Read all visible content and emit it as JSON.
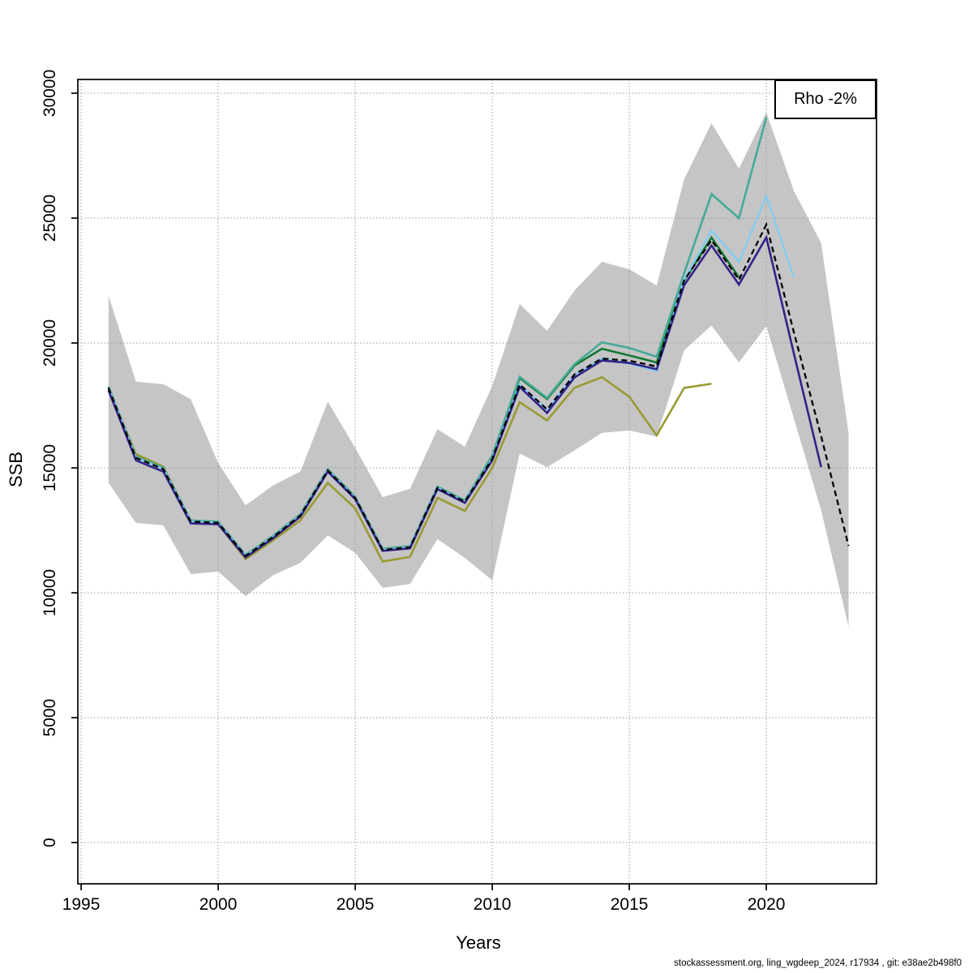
{
  "page": {
    "background": "#ffffff"
  },
  "legend": {
    "label": "Rho -2%"
  },
  "footer": {
    "text": "stockassessment.org, ling_wgdeep_2024, r17934 , git: e38ae2b498f0"
  },
  "chart_data": {
    "type": "line",
    "title": "",
    "xlabel": "Years",
    "ylabel": "SSB",
    "legend_position": "top-right",
    "grid": "dotted gridlines at every axis tick, drawn above confidence band",
    "x_ticks": [
      1995,
      2000,
      2005,
      2010,
      2015,
      2020
    ],
    "y_ticks": [
      0,
      5000,
      10000,
      15000,
      20000,
      25000,
      30000
    ],
    "xlim": [
      1994.88,
      2024.02
    ],
    "ylim": [
      -1650,
      30550
    ],
    "start_year": 1996,
    "years": [
      1996,
      1997,
      1998,
      1999,
      2000,
      2001,
      2002,
      2003,
      2004,
      2005,
      2006,
      2007,
      2008,
      2009,
      2010,
      2011,
      2012,
      2013,
      2014,
      2015,
      2016,
      2017,
      2018,
      2019,
      2020,
      2021,
      2022,
      2023
    ],
    "ribbon": {
      "name": "confidence-band",
      "color": "#c5c5c5",
      "lower": [
        14400,
        12800,
        12700,
        10750,
        10850,
        9870,
        10700,
        11200,
        12300,
        11600,
        10200,
        10350,
        12150,
        11400,
        10500,
        15580,
        15030,
        15700,
        16400,
        16500,
        16250,
        19700,
        20700,
        19220,
        20680,
        17000,
        13300,
        8650
      ],
      "upper": [
        21900,
        18450,
        18350,
        17750,
        15200,
        13500,
        14300,
        14850,
        17650,
        15800,
        13830,
        14160,
        16550,
        15850,
        18280,
        21560,
        20490,
        22100,
        23250,
        22950,
        22300,
        26550,
        28800,
        26980,
        29230,
        26100,
        24000,
        16400
      ]
    },
    "series": [
      {
        "name": "retro-peel-2018",
        "color": "#999933",
        "style": "solid",
        "end_year": 2018,
        "values": [
          18150,
          15550,
          15050,
          12850,
          12750,
          11350,
          12100,
          12900,
          14400,
          13380,
          11250,
          11440,
          13800,
          13280,
          15000,
          17630,
          16900,
          18210,
          18630,
          17850,
          16300,
          18200,
          18370
        ]
      },
      {
        "name": "retro-peel-2019",
        "color": "#117733",
        "style": "solid",
        "end_year": 2019,
        "values": [
          18250,
          15450,
          15000,
          12880,
          12830,
          11500,
          12260,
          13130,
          14920,
          13830,
          11750,
          11850,
          14230,
          13680,
          15450,
          18600,
          17760,
          19100,
          19770,
          19500,
          19220,
          22500,
          24220,
          22630
        ]
      },
      {
        "name": "retro-peel-2020",
        "color": "#44AA99",
        "style": "solid",
        "end_year": 2020,
        "values": [
          18250,
          15450,
          15000,
          12900,
          12850,
          11520,
          12280,
          13150,
          14950,
          13850,
          11770,
          11870,
          14250,
          13700,
          15500,
          18650,
          17800,
          19150,
          20030,
          19800,
          19450,
          22790,
          25960,
          25000,
          29030
        ]
      },
      {
        "name": "retro-peel-2021",
        "color": "#88CCEE",
        "style": "solid",
        "end_year": 2021,
        "values": [
          18200,
          15400,
          14950,
          12850,
          12800,
          11480,
          12230,
          13100,
          14900,
          13800,
          11720,
          11820,
          14200,
          13650,
          15360,
          18340,
          17340,
          18740,
          19380,
          19180,
          18870,
          22550,
          24500,
          23250,
          25880,
          22630
        ]
      },
      {
        "name": "retro-peel-2022",
        "color": "#332288",
        "style": "solid",
        "end_year": 2022,
        "values": [
          18100,
          15300,
          14850,
          12780,
          12740,
          11420,
          12180,
          13050,
          14850,
          13750,
          11680,
          11780,
          14150,
          13600,
          15300,
          18240,
          17200,
          18620,
          19300,
          19200,
          18950,
          22310,
          23900,
          22340,
          24230,
          19600,
          15030
        ]
      },
      {
        "name": "base-run",
        "color": "#000000",
        "style": "dashed",
        "end_year": 2023,
        "values": [
          18200,
          15400,
          14950,
          12850,
          12800,
          11480,
          12230,
          13100,
          14900,
          13800,
          11720,
          11820,
          14200,
          13650,
          15360,
          18340,
          17340,
          18740,
          19380,
          19290,
          19060,
          22500,
          24120,
          22530,
          24740,
          20450,
          16270,
          11880
        ]
      }
    ]
  }
}
